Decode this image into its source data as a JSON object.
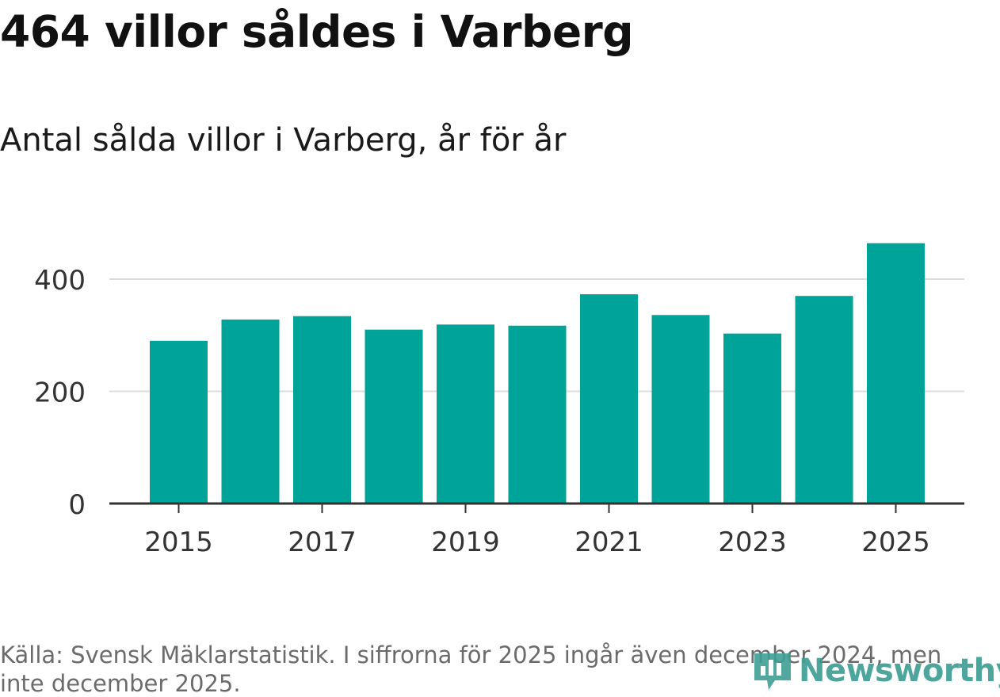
{
  "chart_data": {
    "type": "bar",
    "title": "464 villor såldes i Varberg",
    "subtitle": "Antal sålda villor i Varberg, år för år",
    "xlabel": "",
    "ylabel": "",
    "categories": [
      "2015",
      "2016",
      "2017",
      "2018",
      "2019",
      "2020",
      "2021",
      "2022",
      "2023",
      "2024",
      "2025"
    ],
    "values": [
      290,
      328,
      334,
      310,
      319,
      317,
      373,
      336,
      303,
      370,
      464
    ],
    "x_tick_labels": [
      "2015",
      "2017",
      "2019",
      "2021",
      "2023",
      "2025"
    ],
    "y_ticks": [
      0,
      200,
      400
    ],
    "y_tick_labels": [
      "0",
      "200",
      "400"
    ],
    "ylim": [
      0,
      464
    ],
    "grid": true,
    "bar_color": "#00a398"
  },
  "footer": {
    "source": "Källa: Svensk Mäklarstatistik. I siffrorna för 2025 ingår även december 2024, men inte december 2025.",
    "brand": "Newsworthy",
    "brand_color": "#3f9e93"
  }
}
